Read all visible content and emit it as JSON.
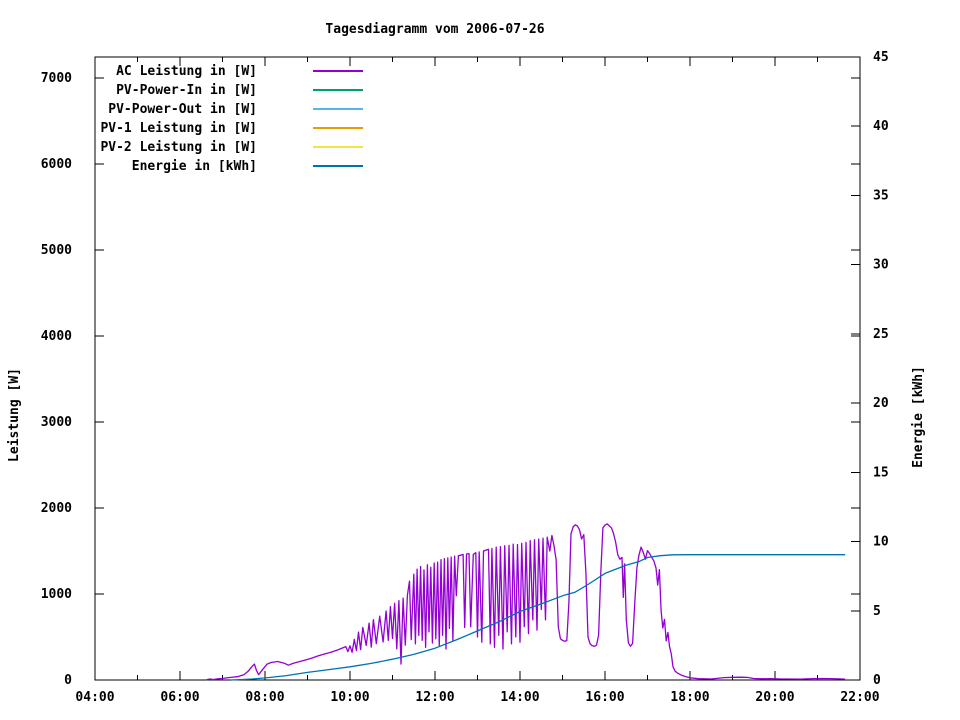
{
  "chart": {
    "title": "Tagesdiagramm vom 2006-07-26",
    "ylabel_left": "Leistung [W]",
    "ylabel_right": "Energie [kWh]"
  },
  "chart_data": {
    "type": "line",
    "title": "Tagesdiagramm vom 2006-07-26",
    "xlabel": "",
    "ylabel_left": "Leistung [W]",
    "ylabel_right": "Energie [kWh]",
    "grid": false,
    "legend_position": "top-left-inside",
    "x_axis": {
      "unit": "time of day (hours)",
      "min": 4,
      "max": 22,
      "major_tick_hours": [
        4,
        6,
        8,
        10,
        12,
        14,
        16,
        18,
        20,
        22
      ],
      "tick_labels": [
        "04:00",
        "06:00",
        "08:00",
        "10:00",
        "12:00",
        "14:00",
        "16:00",
        "18:00",
        "20:00",
        "22:00"
      ],
      "minor_step_hours": 1
    },
    "y_axis_left": {
      "label": "Leistung [W]",
      "min": 0,
      "max": 7244,
      "major_step": 1000,
      "tick_values": [
        0,
        1000,
        2000,
        3000,
        4000,
        5000,
        6000,
        7000
      ]
    },
    "y_axis_right": {
      "label": "Energie [kWh]",
      "min": 0,
      "max": 45,
      "major_step": 5,
      "tick_values": [
        0,
        5,
        10,
        15,
        20,
        25,
        30,
        35,
        40,
        45
      ]
    },
    "series": [
      {
        "name": "AC Leistung in [W]",
        "color": "#9400d3",
        "axis": "left",
        "points": [
          [
            6.62,
            4
          ],
          [
            6.7,
            12
          ],
          [
            6.78,
            6
          ],
          [
            6.9,
            14
          ],
          [
            7.0,
            18
          ],
          [
            7.1,
            24
          ],
          [
            7.2,
            30
          ],
          [
            7.35,
            38
          ],
          [
            7.5,
            60
          ],
          [
            7.6,
            100
          ],
          [
            7.7,
            160
          ],
          [
            7.75,
            185
          ],
          [
            7.8,
            110
          ],
          [
            7.85,
            62
          ],
          [
            7.95,
            125
          ],
          [
            8.05,
            185
          ],
          [
            8.15,
            205
          ],
          [
            8.3,
            215
          ],
          [
            8.45,
            195
          ],
          [
            8.55,
            172
          ],
          [
            8.65,
            192
          ],
          [
            8.8,
            212
          ],
          [
            8.95,
            232
          ],
          [
            9.1,
            255
          ],
          [
            9.25,
            280
          ],
          [
            9.4,
            302
          ],
          [
            9.55,
            322
          ],
          [
            9.7,
            348
          ],
          [
            9.8,
            368
          ],
          [
            9.9,
            388
          ],
          [
            9.95,
            330
          ],
          [
            10.0,
            398
          ],
          [
            10.05,
            322
          ],
          [
            10.1,
            472
          ],
          [
            10.15,
            342
          ],
          [
            10.2,
            556
          ],
          [
            10.25,
            352
          ],
          [
            10.3,
            612
          ],
          [
            10.38,
            402
          ],
          [
            10.45,
            662
          ],
          [
            10.5,
            382
          ],
          [
            10.55,
            702
          ],
          [
            10.62,
            422
          ],
          [
            10.7,
            742
          ],
          [
            10.78,
            442
          ],
          [
            10.85,
            802
          ],
          [
            10.9,
            462
          ],
          [
            10.95,
            852
          ],
          [
            11.0,
            482
          ],
          [
            11.05,
            892
          ],
          [
            11.1,
            362
          ],
          [
            11.15,
            922
          ],
          [
            11.2,
            185
          ],
          [
            11.25,
            952
          ],
          [
            11.3,
            405
          ],
          [
            11.35,
            985
          ],
          [
            11.4,
            1150
          ],
          [
            11.44,
            470
          ],
          [
            11.5,
            1230
          ],
          [
            11.54,
            420
          ],
          [
            11.58,
            1290
          ],
          [
            11.62,
            520
          ],
          [
            11.66,
            1320
          ],
          [
            11.7,
            460
          ],
          [
            11.74,
            1280
          ],
          [
            11.78,
            380
          ],
          [
            11.82,
            1340
          ],
          [
            11.86,
            560
          ],
          [
            11.9,
            1310
          ],
          [
            11.94,
            430
          ],
          [
            11.98,
            1360
          ],
          [
            12.02,
            480
          ],
          [
            12.06,
            1370
          ],
          [
            12.1,
            390
          ],
          [
            12.14,
            1400
          ],
          [
            12.18,
            520
          ],
          [
            12.22,
            1410
          ],
          [
            12.26,
            360
          ],
          [
            12.3,
            1420
          ],
          [
            12.34,
            600
          ],
          [
            12.38,
            1430
          ],
          [
            12.42,
            460
          ],
          [
            12.46,
            1440
          ],
          [
            12.5,
            980
          ],
          [
            12.55,
            1445
          ],
          [
            12.6,
            1450
          ],
          [
            12.66,
            1460
          ],
          [
            12.7,
            610
          ],
          [
            12.74,
            1465
          ],
          [
            12.8,
            1470
          ],
          [
            12.84,
            620
          ],
          [
            12.9,
            1460
          ],
          [
            12.96,
            1480
          ],
          [
            13.0,
            500
          ],
          [
            13.04,
            1490
          ],
          [
            13.1,
            440
          ],
          [
            13.14,
            1500
          ],
          [
            13.2,
            1510
          ],
          [
            13.26,
            1520
          ],
          [
            13.3,
            420
          ],
          [
            13.34,
            1530
          ],
          [
            13.4,
            380
          ],
          [
            13.44,
            1545
          ],
          [
            13.5,
            520
          ],
          [
            13.54,
            1550
          ],
          [
            13.6,
            360
          ],
          [
            13.64,
            1560
          ],
          [
            13.7,
            560
          ],
          [
            13.74,
            1565
          ],
          [
            13.8,
            420
          ],
          [
            13.84,
            1580
          ],
          [
            13.9,
            500
          ],
          [
            13.94,
            1575
          ],
          [
            14.0,
            440
          ],
          [
            14.04,
            1590
          ],
          [
            14.1,
            620
          ],
          [
            14.14,
            1600
          ],
          [
            14.2,
            540
          ],
          [
            14.24,
            1620
          ],
          [
            14.3,
            700
          ],
          [
            14.34,
            1630
          ],
          [
            14.4,
            580
          ],
          [
            14.44,
            1640
          ],
          [
            14.5,
            820
          ],
          [
            14.54,
            1650
          ],
          [
            14.6,
            700
          ],
          [
            14.64,
            1660
          ],
          [
            14.7,
            1500
          ],
          [
            14.75,
            1680
          ],
          [
            14.8,
            1560
          ],
          [
            14.85,
            1400
          ],
          [
            14.9,
            620
          ],
          [
            14.95,
            480
          ],
          [
            15.0,
            462
          ],
          [
            15.05,
            450
          ],
          [
            15.1,
            458
          ],
          [
            15.15,
            900
          ],
          [
            15.2,
            1700
          ],
          [
            15.25,
            1780
          ],
          [
            15.3,
            1805
          ],
          [
            15.35,
            1790
          ],
          [
            15.4,
            1748
          ],
          [
            15.45,
            1640
          ],
          [
            15.5,
            1690
          ],
          [
            15.55,
            1250
          ],
          [
            15.6,
            500
          ],
          [
            15.65,
            420
          ],
          [
            15.7,
            398
          ],
          [
            15.75,
            392
          ],
          [
            15.8,
            405
          ],
          [
            15.85,
            520
          ],
          [
            15.9,
            1250
          ],
          [
            15.95,
            1770
          ],
          [
            16.0,
            1800
          ],
          [
            16.05,
            1815
          ],
          [
            16.1,
            1792
          ],
          [
            16.15,
            1770
          ],
          [
            16.2,
            1705
          ],
          [
            16.25,
            1605
          ],
          [
            16.3,
            1455
          ],
          [
            16.35,
            1405
          ],
          [
            16.4,
            1425
          ],
          [
            16.43,
            960
          ],
          [
            16.46,
            1350
          ],
          [
            16.5,
            700
          ],
          [
            16.55,
            432
          ],
          [
            16.6,
            392
          ],
          [
            16.65,
            425
          ],
          [
            16.7,
            905
          ],
          [
            16.75,
            1305
          ],
          [
            16.8,
            1455
          ],
          [
            16.85,
            1545
          ],
          [
            16.9,
            1485
          ],
          [
            16.95,
            1405
          ],
          [
            17.0,
            1505
          ],
          [
            17.05,
            1470
          ],
          [
            17.1,
            1425
          ],
          [
            17.15,
            1382
          ],
          [
            17.2,
            1302
          ],
          [
            17.24,
            1105
          ],
          [
            17.28,
            1282
          ],
          [
            17.32,
            805
          ],
          [
            17.36,
            605
          ],
          [
            17.4,
            705
          ],
          [
            17.44,
            455
          ],
          [
            17.48,
            552
          ],
          [
            17.52,
            385
          ],
          [
            17.56,
            302
          ],
          [
            17.6,
            152
          ],
          [
            17.65,
            102
          ],
          [
            17.7,
            82
          ],
          [
            17.8,
            56
          ],
          [
            17.9,
            40
          ],
          [
            18.0,
            26
          ],
          [
            18.2,
            15
          ],
          [
            18.5,
            12
          ],
          [
            18.8,
            28
          ],
          [
            19.0,
            31
          ],
          [
            19.2,
            33
          ],
          [
            19.35,
            30
          ],
          [
            19.5,
            18
          ],
          [
            19.7,
            14
          ],
          [
            19.9,
            16
          ],
          [
            20.1,
            13
          ],
          [
            20.35,
            12
          ],
          [
            20.6,
            10
          ],
          [
            20.9,
            16
          ],
          [
            21.1,
            18
          ],
          [
            21.3,
            16
          ],
          [
            21.5,
            13
          ],
          [
            21.65,
            10
          ]
        ]
      },
      {
        "name": "PV-Power-In in [W]",
        "color": "#009e73",
        "axis": "left",
        "points": []
      },
      {
        "name": "PV-Power-Out in [W]",
        "color": "#56b4e9",
        "axis": "left",
        "points": []
      },
      {
        "name": "PV-1 Leistung in [W]",
        "color": "#e69f00",
        "axis": "left",
        "points": []
      },
      {
        "name": "PV-2 Leistung in [W]",
        "color": "#f0e442",
        "axis": "left",
        "points": []
      },
      {
        "name": "Energie in [kWh]",
        "color": "#0072b2",
        "axis": "right",
        "points": [
          [
            7.2,
            0
          ],
          [
            7.7,
            0.07
          ],
          [
            8.1,
            0.18
          ],
          [
            8.5,
            0.32
          ],
          [
            9.0,
            0.55
          ],
          [
            9.5,
            0.75
          ],
          [
            10.0,
            0.95
          ],
          [
            10.5,
            1.2
          ],
          [
            11.0,
            1.5
          ],
          [
            11.5,
            1.85
          ],
          [
            12.0,
            2.3
          ],
          [
            12.5,
            2.9
          ],
          [
            13.0,
            3.55
          ],
          [
            13.5,
            4.2
          ],
          [
            14.0,
            4.95
          ],
          [
            14.5,
            5.5
          ],
          [
            15.0,
            6.08
          ],
          [
            15.3,
            6.35
          ],
          [
            15.6,
            6.9
          ],
          [
            16.0,
            7.7
          ],
          [
            16.5,
            8.3
          ],
          [
            16.8,
            8.55
          ],
          [
            17.0,
            8.85
          ],
          [
            17.3,
            8.98
          ],
          [
            17.6,
            9.04
          ],
          [
            18.0,
            9.05
          ],
          [
            19.0,
            9.05
          ],
          [
            20.0,
            9.05
          ],
          [
            21.0,
            9.05
          ],
          [
            21.65,
            9.05
          ]
        ]
      }
    ]
  }
}
